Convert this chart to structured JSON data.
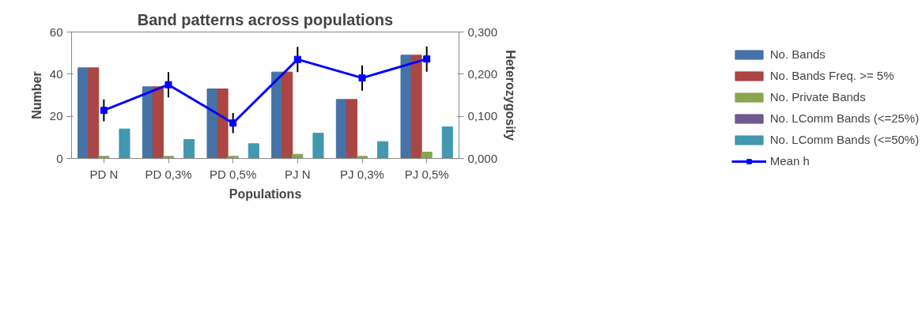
{
  "chart_data": {
    "type": "bar",
    "title": "Band patterns across populations",
    "xlabel": "Populations",
    "ylabel": "Number",
    "y2label": "Heterozygosity",
    "categories": [
      "PD N",
      "PD 0,3%",
      "PD 0,5%",
      "PJ N",
      "PJ 0,3%",
      "PJ 0,5%"
    ],
    "series": [
      {
        "name": "No. Bands",
        "color": "#4572a7",
        "values": [
          43,
          34,
          33,
          41,
          28,
          49
        ]
      },
      {
        "name": "No. Bands Freq. >= 5%",
        "color": "#aa4643",
        "values": [
          43,
          34,
          33,
          41,
          28,
          49
        ]
      },
      {
        "name": "No. Private Bands",
        "color": "#89a54e",
        "values": [
          1,
          1,
          1,
          2,
          1,
          3
        ]
      },
      {
        "name": "No. LComm Bands (<=25%)",
        "color": "#71588f",
        "values": [
          0,
          0,
          0,
          0,
          0,
          0
        ]
      },
      {
        "name": "No. LComm Bands (<=50%)",
        "color": "#4198af",
        "values": [
          14,
          9,
          7,
          12,
          8,
          15
        ]
      },
      {
        "name": "Mean h",
        "type": "line",
        "axis": "y2",
        "color": "#0000ff",
        "marker": "square",
        "values": [
          0.114,
          0.175,
          0.084,
          0.235,
          0.191,
          0.236
        ],
        "errors": [
          0.026,
          0.03,
          0.024,
          0.03,
          0.03,
          0.03
        ]
      }
    ],
    "ylim": [
      0,
      60
    ],
    "yticks": [
      0,
      20,
      40,
      60
    ],
    "y2lim": [
      0,
      0.3
    ],
    "y2ticks": [
      {
        "value": 0,
        "label": "0,000"
      },
      {
        "value": 0.1,
        "label": "0,100"
      },
      {
        "value": 0.2,
        "label": "0,200"
      },
      {
        "value": 0.3,
        "label": "0,300"
      }
    ],
    "grid": false,
    "legend": "right"
  }
}
